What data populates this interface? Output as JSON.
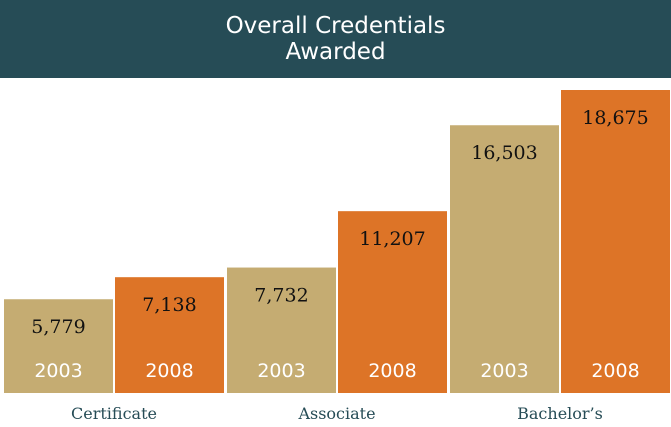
{
  "chart_data": {
    "type": "bar",
    "title": "Overall Credentials Awarded",
    "categories": [
      "Certificate",
      "Associate",
      "Bachelor’s"
    ],
    "series": [
      {
        "name": "2003",
        "color": "#c5ac72",
        "values": [
          5779,
          7732,
          16503
        ],
        "value_labels": [
          "5,779",
          "7,732",
          "16,503"
        ]
      },
      {
        "name": "2008",
        "color": "#dd7427",
        "values": [
          7138,
          11207,
          18675
        ],
        "value_labels": [
          "7,138",
          "11,207",
          "18,675"
        ]
      }
    ]
  }
}
